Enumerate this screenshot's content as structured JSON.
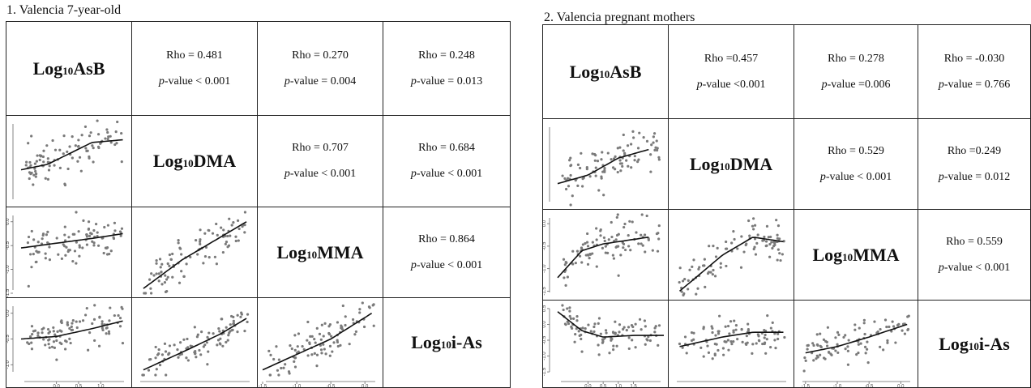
{
  "panels": [
    {
      "title": "1. Valencia 7-year-old",
      "variables": [
        {
          "base": "Log",
          "sub": "10",
          "name": " AsB"
        },
        {
          "base": "Log",
          "sub": "10",
          "name": " DMA"
        },
        {
          "base": "Log",
          "sub": "10",
          "name": " MMA"
        },
        {
          "base": "Log",
          "sub": "10",
          "name": " i-As"
        }
      ],
      "correlations": [
        {
          "rho": "Rho = 0.481",
          "p_label": "p",
          "p_rest": "-value < 0.001"
        },
        {
          "rho": "Rho = 0.270",
          "p_label": "p",
          "p_rest": "-value = 0.004"
        },
        {
          "rho": "Rho = 0.248",
          "p_label": "p",
          "p_rest": "-value = 0.013"
        },
        {
          "rho": "Rho = 0.707",
          "p_label": "p",
          "p_rest": "-value < 0.001"
        },
        {
          "rho": "Rho = 0.684",
          "p_label": "p",
          "p_rest": "-value < 0.001"
        },
        {
          "rho": "Rho = 0.864",
          "p_label": "p",
          "p_rest": "-value < 0.001"
        }
      ]
    },
    {
      "title": "2. Valencia pregnant mothers",
      "variables": [
        {
          "base": "Log",
          "sub": "10",
          "name": " AsB"
        },
        {
          "base": "Log",
          "sub": "10",
          "name": " DMA"
        },
        {
          "base": "Log",
          "sub": "10",
          "name": " MMA"
        },
        {
          "base": "Log",
          "sub": "10",
          "name": " i-As"
        }
      ],
      "correlations": [
        {
          "rho": "Rho =0.457",
          "p_label": "p",
          "p_rest": "-value <0.001"
        },
        {
          "rho": "Rho = 0.278",
          "p_label": "p",
          "p_rest": "-value =0.006"
        },
        {
          "rho": "Rho = -0.030",
          "p_label": "p",
          "p_rest": "-value = 0.766"
        },
        {
          "rho": "Rho =  0.529",
          "p_label": "p",
          "p_rest": "-value < 0.001"
        },
        {
          "rho": "Rho =0.249",
          "p_label": "p",
          "p_rest": "-value = 0.012"
        },
        {
          "rho": "Rho = 0.559",
          "p_label": "p",
          "p_rest": "-value < 0.001"
        }
      ]
    }
  ],
  "chart_data": [
    {
      "type": "scatter",
      "title": "1. Valencia 7-year-old",
      "kind": "scatterplot matrix with loess smooth lines",
      "variables": [
        "Log10 AsB",
        "Log10 DMA",
        "Log10 MMA",
        "Log10 i-As"
      ],
      "ticks": {
        "Log10 AsB": [
          "0.0",
          "0.5",
          "1.0"
        ],
        "Log10 MMA": [
          "0.0",
          "-0.5",
          "-1.0",
          "-1.5"
        ],
        "Log10 i-As": [
          "0.0",
          "-0.5",
          "-1.0"
        ]
      },
      "pairs": [
        {
          "x": "Log10 AsB",
          "y": "Log10 DMA",
          "xlim": [
            -0.8,
            1.6
          ],
          "ylim": [
            -0.3,
            1.2
          ],
          "smooth_x": [
            -0.8,
            -0.2,
            0.3,
            0.8,
            1.5
          ],
          "smooth_y": [
            0.3,
            0.4,
            0.6,
            0.8,
            0.85
          ]
        },
        {
          "x": "Log10 AsB",
          "y": "Log10 MMA",
          "xlim": [
            -0.8,
            1.6
          ],
          "ylim": [
            -1.5,
            0.2
          ],
          "smooth_x": [
            -0.8,
            0.0,
            0.8,
            1.5
          ],
          "smooth_y": [
            -0.55,
            -0.45,
            -0.35,
            -0.25
          ]
        },
        {
          "x": "Log10 DMA",
          "y": "Log10 MMA",
          "xlim": [
            -0.5,
            1.3
          ],
          "ylim": [
            -1.5,
            0.2
          ],
          "smooth_x": [
            -0.4,
            0.2,
            0.7,
            1.2
          ],
          "smooth_y": [
            -1.4,
            -0.8,
            -0.4,
            0.0
          ]
        },
        {
          "x": "Log10 AsB",
          "y": "Log10 i-As",
          "xlim": [
            -0.8,
            1.6
          ],
          "ylim": [
            -1.2,
            0.2
          ],
          "smooth_x": [
            -0.8,
            0.0,
            0.8,
            1.5
          ],
          "smooth_y": [
            -0.5,
            -0.45,
            -0.3,
            -0.15
          ]
        },
        {
          "x": "Log10 DMA",
          "y": "Log10 i-As",
          "xlim": [
            -0.5,
            1.3
          ],
          "ylim": [
            -1.2,
            0.2
          ],
          "smooth_x": [
            -0.4,
            0.3,
            0.8,
            1.2
          ],
          "smooth_y": [
            -1.1,
            -0.7,
            -0.4,
            -0.1
          ]
        },
        {
          "x": "Log10 MMA",
          "y": "Log10 i-As",
          "xlim": [
            -1.5,
            0.2
          ],
          "ylim": [
            -1.2,
            0.2
          ],
          "smooth_x": [
            -1.5,
            -1.0,
            -0.5,
            0.1
          ],
          "smooth_y": [
            -1.1,
            -0.8,
            -0.5,
            0.0
          ]
        }
      ]
    },
    {
      "type": "scatter",
      "title": "2. Valencia pregnant mothers",
      "kind": "scatterplot matrix with loess smooth lines",
      "variables": [
        "Log10 AsB",
        "Log10 DMA",
        "Log10 MMA",
        "Log10 i-As"
      ],
      "ticks": {
        "Log10 AsB": [
          "0.0",
          "0.5",
          "1.0",
          "1.5"
        ],
        "Log10 MMA": [
          "0.0",
          "-0.5",
          "-1.0",
          "-1.5"
        ],
        "Log10 i-As": [
          "0.5",
          "0.0",
          "-0.5",
          "-1.0",
          "-1.5"
        ]
      },
      "pairs": [
        {
          "x": "Log10 AsB",
          "y": "Log10 DMA",
          "xlim": [
            -1.0,
            2.5
          ],
          "ylim": [
            -0.3,
            1.6
          ],
          "smooth_x": [
            -1.0,
            0.0,
            1.0,
            2.0
          ],
          "smooth_y": [
            0.2,
            0.4,
            0.8,
            1.0
          ]
        },
        {
          "x": "Log10 AsB",
          "y": "Log10 MMA",
          "xlim": [
            -1.0,
            2.5
          ],
          "ylim": [
            -1.6,
            0.2
          ],
          "smooth_x": [
            -1.0,
            -0.2,
            0.5,
            2.0
          ],
          "smooth_y": [
            -1.2,
            -0.6,
            -0.45,
            -0.3
          ]
        },
        {
          "x": "Log10 DMA",
          "y": "Log10 MMA",
          "xlim": [
            -0.3,
            1.6
          ],
          "ylim": [
            -1.6,
            0.2
          ],
          "smooth_x": [
            -0.2,
            0.5,
            1.0,
            1.5
          ],
          "smooth_y": [
            -1.5,
            -0.7,
            -0.3,
            -0.4
          ]
        },
        {
          "x": "Log10 AsB",
          "y": "Log10 i-As",
          "xlim": [
            -1.0,
            2.5
          ],
          "ylim": [
            -1.6,
            0.6
          ],
          "smooth_x": [
            -1.0,
            -0.2,
            0.5,
            1.5,
            2.5
          ],
          "smooth_y": [
            0.4,
            -0.2,
            -0.4,
            -0.35,
            -0.35
          ]
        },
        {
          "x": "Log10 DMA",
          "y": "Log10 i-As",
          "xlim": [
            -0.3,
            1.6
          ],
          "ylim": [
            -1.6,
            0.6
          ],
          "smooth_x": [
            -0.2,
            0.5,
            1.0,
            1.5
          ],
          "smooth_y": [
            -0.7,
            -0.4,
            -0.25,
            -0.25
          ]
        },
        {
          "x": "Log10 MMA",
          "y": "Log10 i-As",
          "xlim": [
            -1.6,
            0.2
          ],
          "ylim": [
            -1.6,
            0.6
          ],
          "smooth_x": [
            -1.5,
            -1.0,
            -0.5,
            0.1
          ],
          "smooth_y": [
            -0.9,
            -0.7,
            -0.4,
            0.0
          ]
        }
      ]
    }
  ]
}
